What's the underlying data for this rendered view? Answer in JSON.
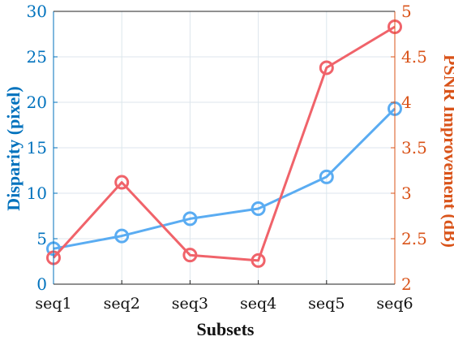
{
  "colors": {
    "left_axis": "#0072BD",
    "right_axis": "#D95319",
    "disparity_line": "#5AACF2",
    "psnr_line": "#F0636A",
    "grid": "#DCE6EC"
  },
  "chart_data": {
    "type": "line",
    "categories": [
      "seq1",
      "seq2",
      "seq3",
      "seq4",
      "seq5",
      "seq6"
    ],
    "xlabel": "Subsets",
    "ylabel": "Disparity (pixel)",
    "ylabel_right": "PSNR Improvement (dB)",
    "ylim": [
      0,
      30
    ],
    "ylim_right": [
      2,
      5
    ],
    "yticks": [
      "0",
      "5",
      "10",
      "15",
      "20",
      "25",
      "30"
    ],
    "yticks_right": [
      "2",
      "2.5",
      "3",
      "3.5",
      "4",
      "4.5",
      "5"
    ],
    "grid": true,
    "legend": "none",
    "series": [
      {
        "axis": "left",
        "marker": "circle",
        "values": [
          3.9,
          5.3,
          7.2,
          8.3,
          11.8,
          19.3
        ]
      },
      {
        "axis": "right",
        "marker": "circle",
        "values": [
          2.29,
          3.12,
          2.32,
          2.26,
          4.38,
          4.83
        ]
      }
    ]
  }
}
